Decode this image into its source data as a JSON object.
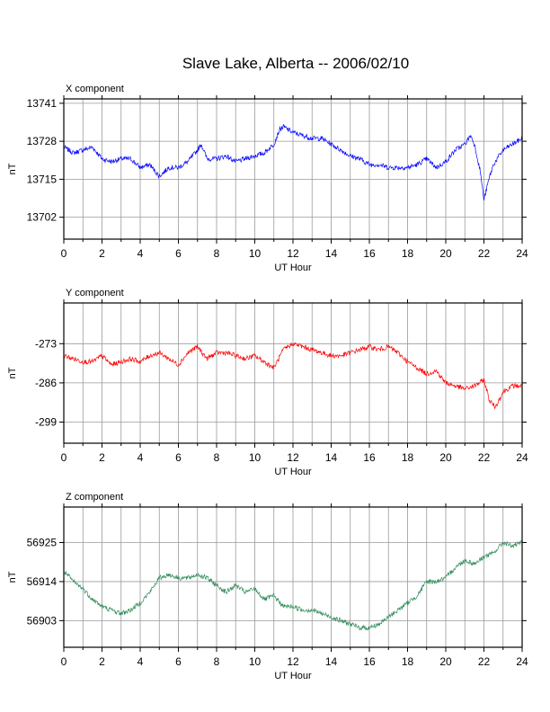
{
  "title": "Slave Lake, Alberta -- 2006/02/10",
  "chart_data": [
    {
      "type": "line",
      "panel_label": "X component",
      "xlabel": "UT Hour",
      "ylabel": "nT",
      "xlim": [
        0,
        24
      ],
      "ylim": [
        13694.5,
        13742.5
      ],
      "x_ticks": [
        0,
        2,
        4,
        6,
        8,
        10,
        12,
        14,
        16,
        18,
        20,
        22,
        24
      ],
      "y_ticks": [
        13741,
        13728,
        13715,
        13702
      ],
      "grid": true,
      "color": "#0000ff",
      "x": [
        0,
        0.5,
        1,
        1.5,
        2,
        2.5,
        3,
        3.5,
        4,
        4.5,
        5,
        5.5,
        6,
        6.5,
        7,
        7.2,
        7.5,
        8,
        8.5,
        9,
        9.5,
        10,
        10.5,
        11,
        11.3,
        11.5,
        12,
        12.5,
        13,
        13.5,
        14,
        14.5,
        15,
        15.5,
        16,
        16.5,
        17,
        17.5,
        18,
        18.5,
        19,
        19.5,
        20,
        20.5,
        21,
        21.3,
        21.5,
        21.8,
        22,
        22.3,
        22.5,
        23,
        23.5,
        24
      ],
      "values": [
        13726,
        13724,
        13725,
        13726,
        13722,
        13721,
        13722,
        13722,
        13719,
        13720,
        13716,
        13719,
        13719,
        13721,
        13725,
        13727,
        13722,
        13722,
        13723,
        13721,
        13722,
        13723,
        13724,
        13727,
        13732,
        13733,
        13731,
        13730,
        13729,
        13729,
        13727,
        13725,
        13723,
        13722,
        13720,
        13720,
        13719,
        13719,
        13719,
        13720,
        13722,
        13719,
        13721,
        13725,
        13727,
        13730,
        13727,
        13718,
        13708,
        13716,
        13720,
        13725,
        13727,
        13729
      ]
    },
    {
      "type": "line",
      "panel_label": "Y component",
      "xlabel": "UT Hour",
      "ylabel": "nT",
      "xlim": [
        0,
        24
      ],
      "ylim": [
        -306,
        -259.5
      ],
      "x_ticks": [
        0,
        2,
        4,
        6,
        8,
        10,
        12,
        14,
        16,
        18,
        20,
        22,
        24
      ],
      "y_ticks": [
        -273,
        -286,
        -299
      ],
      "grid": true,
      "color": "#ff0000",
      "x": [
        0,
        0.5,
        1,
        1.5,
        2,
        2.5,
        3,
        3.5,
        4,
        4.5,
        5,
        5.5,
        6,
        6.5,
        7,
        7.5,
        8,
        8.5,
        9,
        9.5,
        10,
        10.5,
        11,
        11.5,
        12,
        12.5,
        13,
        13.5,
        14,
        14.5,
        15,
        15.5,
        16,
        16.5,
        17,
        17.5,
        18,
        18.5,
        19,
        19.5,
        20,
        20.5,
        21,
        21.5,
        22,
        22.3,
        22.6,
        23,
        23.5,
        24
      ],
      "values": [
        -277,
        -278,
        -279,
        -279,
        -277,
        -280,
        -279,
        -278,
        -279,
        -277,
        -276,
        -278,
        -280,
        -276,
        -274,
        -278,
        -276,
        -276,
        -277,
        -278,
        -277,
        -279,
        -281,
        -275,
        -273,
        -274,
        -275,
        -276,
        -277,
        -277,
        -276,
        -275,
        -274,
        -275,
        -274,
        -276,
        -279,
        -281,
        -283,
        -282,
        -286,
        -287,
        -288,
        -287,
        -285,
        -292,
        -294,
        -289,
        -287,
        -287
      ]
    },
    {
      "type": "line",
      "panel_label": "Z component",
      "xlabel": "UT Hour",
      "ylabel": "nT",
      "xlim": [
        0,
        24
      ],
      "ylim": [
        56895.5,
        56935
      ],
      "x_ticks": [
        0,
        2,
        4,
        6,
        8,
        10,
        12,
        14,
        16,
        18,
        20,
        22,
        24
      ],
      "y_ticks": [
        56925,
        56914,
        56903
      ],
      "grid": true,
      "color": "#2e8b57",
      "x": [
        0,
        0.5,
        1,
        1.5,
        2,
        2.5,
        3,
        3.5,
        4,
        4.5,
        5,
        5.5,
        6,
        6.5,
        7,
        7.5,
        8,
        8.5,
        9,
        9.5,
        10,
        10.5,
        11,
        11.5,
        12,
        12.5,
        13,
        13.5,
        14,
        14.5,
        15,
        15.5,
        16,
        16.5,
        17,
        17.5,
        18,
        18.5,
        19,
        19.5,
        20,
        20.5,
        21,
        21.5,
        22,
        22.5,
        23,
        23.5,
        24
      ],
      "values": [
        56917,
        56914,
        56912,
        56909,
        56907,
        56906,
        56905,
        56906,
        56908,
        56911,
        56915,
        56916,
        56915,
        56915,
        56916,
        56915,
        56913,
        56911,
        56913,
        56911,
        56912,
        56909,
        56910,
        56907,
        56907,
        56906,
        56906,
        56905,
        56904,
        56903,
        56902,
        56901,
        56901,
        56902,
        56904,
        56906,
        56908,
        56910,
        56914,
        56914,
        56915,
        56918,
        56920,
        56919,
        56921,
        56922,
        56925,
        56924,
        56925
      ]
    }
  ]
}
